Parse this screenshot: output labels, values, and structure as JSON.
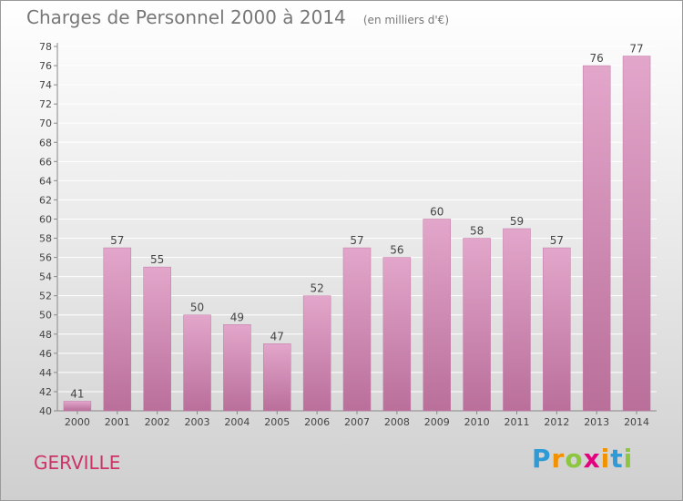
{
  "chart_data": {
    "type": "bar",
    "title": "Charges de Personnel 2000 à 2014",
    "subtitle": "(en milliers d'€)",
    "categories": [
      "2000",
      "2001",
      "2002",
      "2003",
      "2004",
      "2005",
      "2006",
      "2007",
      "2008",
      "2009",
      "2010",
      "2011",
      "2012",
      "2013",
      "2014"
    ],
    "values": [
      41,
      57,
      55,
      50,
      49,
      47,
      52,
      57,
      56,
      60,
      58,
      59,
      57,
      76,
      77
    ],
    "ylim": [
      40,
      78
    ],
    "yticks": [
      40,
      42,
      44,
      46,
      48,
      50,
      52,
      54,
      56,
      58,
      60,
      62,
      64,
      66,
      68,
      70,
      72,
      74,
      76,
      78
    ],
    "xlabel": "",
    "ylabel": "",
    "grid": true,
    "bar_color": "#d98cb8"
  },
  "location_label": "GERVILLE",
  "brand": {
    "letters": [
      "P",
      "r",
      "o",
      "x",
      "i",
      "t",
      "i"
    ],
    "colors": [
      "#2e9ad6",
      "#f39200",
      "#8dc63f",
      "#e4007c",
      "#f39200",
      "#2e9ad6",
      "#8dc63f"
    ]
  }
}
